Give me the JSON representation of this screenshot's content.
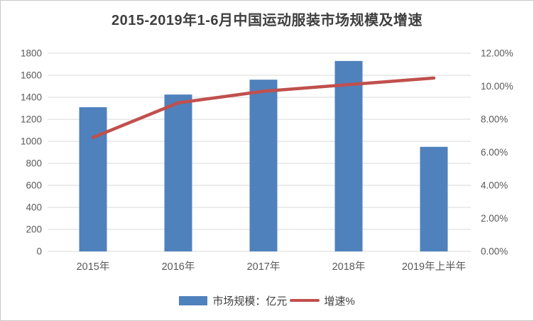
{
  "chart_data": {
    "type": "combo-bar-line",
    "title": "2015-2019年1-6月中国运动服装市场规模及增速",
    "categories": [
      "2015年",
      "2016年",
      "2017年",
      "2018年",
      "2019年上半年"
    ],
    "series": [
      {
        "name": "市场规模：亿元",
        "type": "bar",
        "axis": "left",
        "color": "#4F81BD",
        "values": [
          1310,
          1425,
          1560,
          1730,
          950
        ]
      },
      {
        "name": "增速%",
        "type": "line",
        "axis": "right",
        "color": "#C0504D",
        "values": [
          6.9,
          9.0,
          9.7,
          10.1,
          10.5
        ]
      }
    ],
    "left_axis": {
      "min": 0,
      "max": 1800,
      "step": 200,
      "labels": [
        "0",
        "200",
        "400",
        "600",
        "800",
        "1000",
        "1200",
        "1400",
        "1600",
        "1800"
      ]
    },
    "right_axis": {
      "min": 0,
      "max": 12,
      "step": 2,
      "labels": [
        "0.00%",
        "2.00%",
        "4.00%",
        "6.00%",
        "8.00%",
        "10.00%",
        "12.00%"
      ]
    },
    "grid": true,
    "legend_position": "bottom",
    "colors": {
      "grid": "#D9D9D9",
      "axis_text": "#595959",
      "title_text": "#3F3F3F",
      "background": "#FFFFFF",
      "border": "#C8C8C8"
    }
  }
}
